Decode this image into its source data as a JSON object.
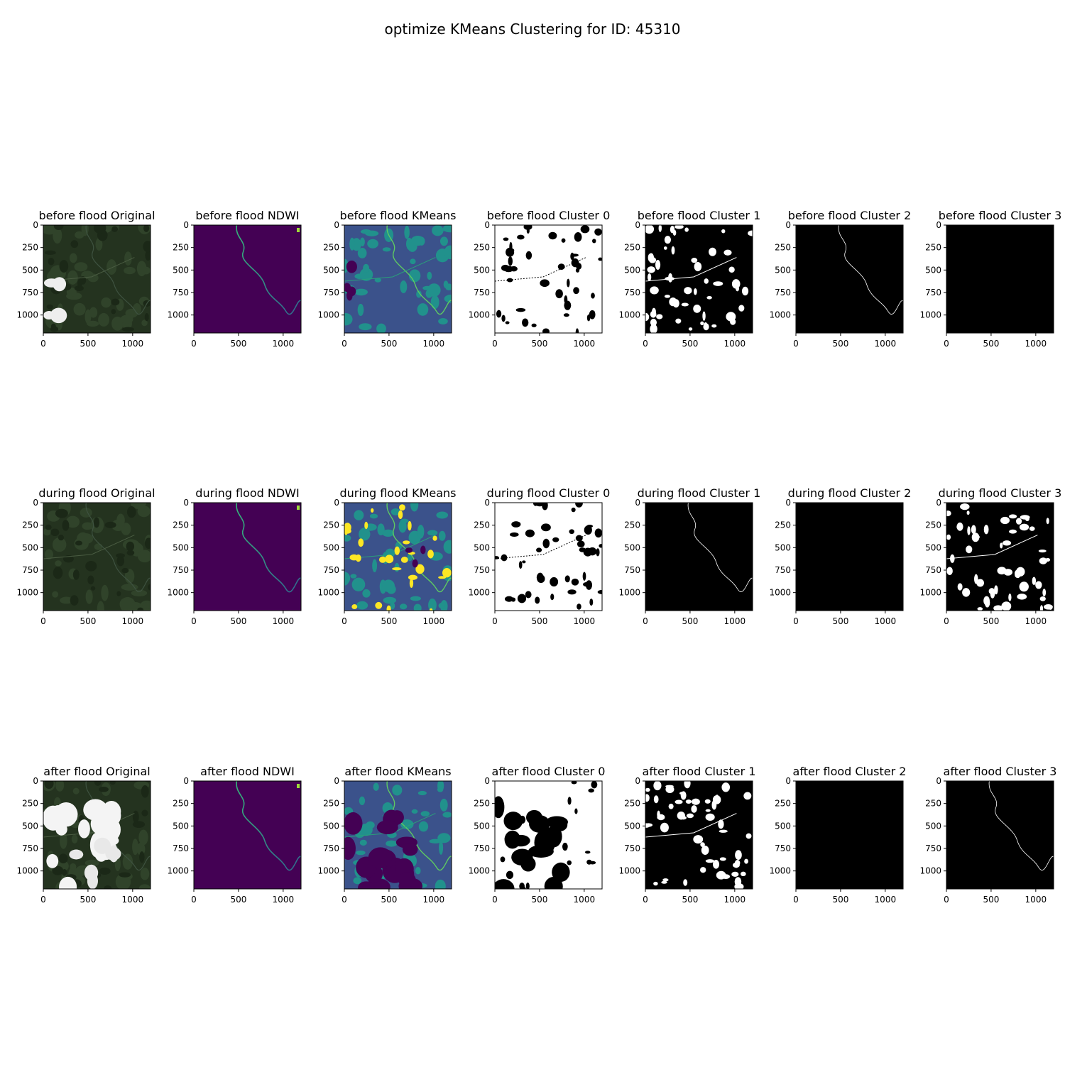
{
  "figure": {
    "suptitle": "optimize KMeans Clustering for ID: 45310"
  },
  "axes": {
    "x_ticks": [
      "0",
      "500",
      "1000"
    ],
    "y_ticks": [
      "0",
      "250",
      "500",
      "750",
      "1000"
    ],
    "x_tick_values": [
      0,
      500,
      1000
    ],
    "y_tick_values": [
      0,
      250,
      500,
      750,
      1000
    ],
    "extent": [
      0,
      1200
    ]
  },
  "rows": [
    {
      "phase": "before flood",
      "panels": [
        {
          "title": "before flood Original",
          "kind": "rgb"
        },
        {
          "title": "before flood NDWI",
          "kind": "ndwi"
        },
        {
          "title": "before flood KMeans",
          "kind": "kmeans"
        },
        {
          "title": "before flood Cluster 0",
          "kind": "mask-mostly-white"
        },
        {
          "title": "before flood Cluster 1",
          "kind": "mask-speckled"
        },
        {
          "title": "before flood Cluster 2",
          "kind": "mask-river"
        },
        {
          "title": "before flood Cluster 3",
          "kind": "mask-empty"
        }
      ]
    },
    {
      "phase": "during flood",
      "panels": [
        {
          "title": "during flood Original",
          "kind": "rgb"
        },
        {
          "title": "during flood NDWI",
          "kind": "ndwi"
        },
        {
          "title": "during flood KMeans",
          "kind": "kmeans"
        },
        {
          "title": "during flood Cluster 0",
          "kind": "mask-mostly-white"
        },
        {
          "title": "during flood Cluster 1",
          "kind": "mask-river"
        },
        {
          "title": "during flood Cluster 2",
          "kind": "mask-empty"
        },
        {
          "title": "during flood Cluster 3",
          "kind": "mask-speckled"
        }
      ]
    },
    {
      "phase": "after flood",
      "panels": [
        {
          "title": "after flood Original",
          "kind": "rgb-clouds"
        },
        {
          "title": "after flood NDWI",
          "kind": "ndwi"
        },
        {
          "title": "after flood KMeans",
          "kind": "kmeans-clouds"
        },
        {
          "title": "after flood Cluster 0",
          "kind": "mask-half"
        },
        {
          "title": "after flood Cluster 1",
          "kind": "mask-speckled"
        },
        {
          "title": "after flood Cluster 2",
          "kind": "mask-empty"
        },
        {
          "title": "after flood Cluster 3",
          "kind": "mask-river"
        }
      ]
    }
  ]
}
